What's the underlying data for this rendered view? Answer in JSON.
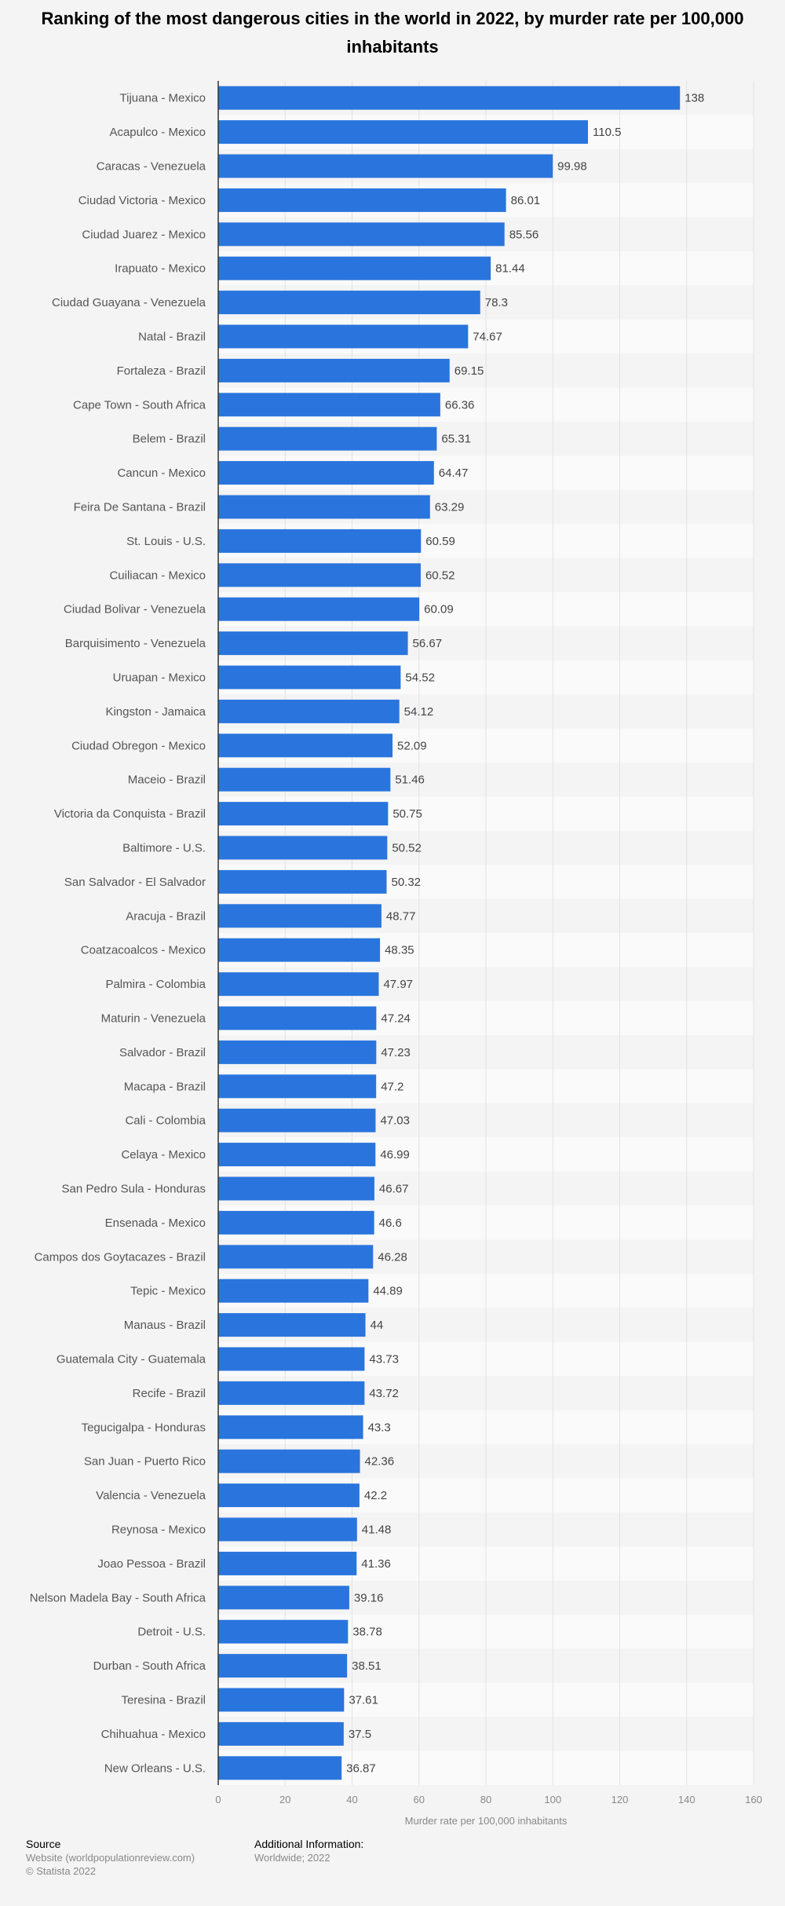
{
  "title": "Ranking of the most dangerous cities in the world in 2022, by murder rate per 100,000 inhabitants",
  "chart_data": {
    "type": "bar",
    "orientation": "horizontal",
    "title": "Ranking of the most dangerous cities in the world in 2022, by murder rate per 100,000 inhabitants",
    "xlabel": "Murder rate per 100,000 inhabitants",
    "ylabel": "",
    "xlim": [
      0,
      160
    ],
    "xticks": [
      0,
      20,
      40,
      60,
      80,
      100,
      120,
      140,
      160
    ],
    "grid": true,
    "bar_color": "#2a75dd",
    "categories": [
      "Tijuana - Mexico",
      "Acapulco - Mexico",
      "Caracas - Venezuela",
      "Ciudad Victoria - Mexico",
      "Ciudad Juarez - Mexico",
      "Irapuato - Mexico",
      "Ciudad Guayana - Venezuela",
      "Natal - Brazil",
      "Fortaleza - Brazil",
      "Cape Town - South Africa",
      "Belem - Brazil",
      "Cancun - Mexico",
      "Feira De Santana - Brazil",
      "St. Louis - U.S.",
      "Cuiliacan - Mexico",
      "Ciudad Bolivar - Venezuela",
      "Barquisimento - Venezuela",
      "Uruapan - Mexico",
      "Kingston - Jamaica",
      "Ciudad Obregon - Mexico",
      "Maceio - Brazil",
      "Victoria da Conquista - Brazil",
      "Baltimore - U.S.",
      "San Salvador - El Salvador",
      "Aracuja - Brazil",
      "Coatzacoalcos - Mexico",
      "Palmira - Colombia",
      "Maturin - Venezuela",
      "Salvador - Brazil",
      "Macapa - Brazil",
      "Cali - Colombia",
      "Celaya - Mexico",
      "San Pedro Sula - Honduras",
      "Ensenada - Mexico",
      "Campos dos Goytacazes - Brazil",
      "Tepic - Mexico",
      "Manaus - Brazil",
      "Guatemala City - Guatemala",
      "Recife - Brazil",
      "Tegucigalpa - Honduras",
      "San Juan - Puerto Rico",
      "Valencia - Venezuela",
      "Reynosa - Mexico",
      "Joao Pessoa - Brazil",
      "Nelson Madela Bay - South Africa",
      "Detroit - U.S.",
      "Durban - South Africa",
      "Teresina - Brazil",
      "Chihuahua - Mexico",
      "New Orleans - U.S."
    ],
    "values": [
      138,
      110.5,
      99.98,
      86.01,
      85.56,
      81.44,
      78.3,
      74.67,
      69.15,
      66.36,
      65.31,
      64.47,
      63.29,
      60.59,
      60.52,
      60.09,
      56.67,
      54.52,
      54.12,
      52.09,
      51.46,
      50.75,
      50.52,
      50.32,
      48.77,
      48.35,
      47.97,
      47.24,
      47.23,
      47.2,
      47.03,
      46.99,
      46.67,
      46.6,
      46.28,
      44.89,
      44,
      43.73,
      43.72,
      43.3,
      42.36,
      42.2,
      41.48,
      41.36,
      39.16,
      38.78,
      38.51,
      37.61,
      37.5,
      36.87
    ]
  },
  "footer": {
    "source_heading": "Source",
    "source_line1": "Website (worldpopulationreview.com)",
    "source_line2": "© Statista 2022",
    "info_heading": "Additional Information:",
    "info_line1": "Worldwide; 2022"
  }
}
